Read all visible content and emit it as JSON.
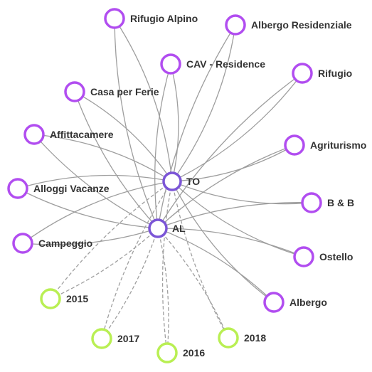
{
  "colors": {
    "hub": "#7b55d6",
    "category": "#b14df0",
    "year": "#b9ef53",
    "link": "#9e9e9e"
  },
  "hubs": [
    {
      "id": "to",
      "label": "TO"
    },
    {
      "id": "al",
      "label": "AL"
    }
  ],
  "categories": [
    {
      "id": "rifugio-alpino",
      "label": "Rifugio Alpino"
    },
    {
      "id": "albergo-residenziale",
      "label": "Albergo Residenziale"
    },
    {
      "id": "cav-residence",
      "label": "CAV - Residence"
    },
    {
      "id": "rifugio",
      "label": "Rifugio"
    },
    {
      "id": "casa-per-ferie",
      "label": "Casa per Ferie"
    },
    {
      "id": "affittacamere",
      "label": "Affittacamere"
    },
    {
      "id": "agriturismo",
      "label": "Agriturismo"
    },
    {
      "id": "alloggi-vacanze",
      "label": "Alloggi Vacanze"
    },
    {
      "id": "b-and-b",
      "label": "B & B"
    },
    {
      "id": "campeggio",
      "label": "Campeggio"
    },
    {
      "id": "ostello",
      "label": "Ostello"
    },
    {
      "id": "albergo",
      "label": "Albergo"
    }
  ],
  "years": [
    {
      "id": "y2015",
      "label": "2015"
    },
    {
      "id": "y2017",
      "label": "2017"
    },
    {
      "id": "y2016",
      "label": "2016"
    },
    {
      "id": "y2018",
      "label": "2018"
    }
  ]
}
